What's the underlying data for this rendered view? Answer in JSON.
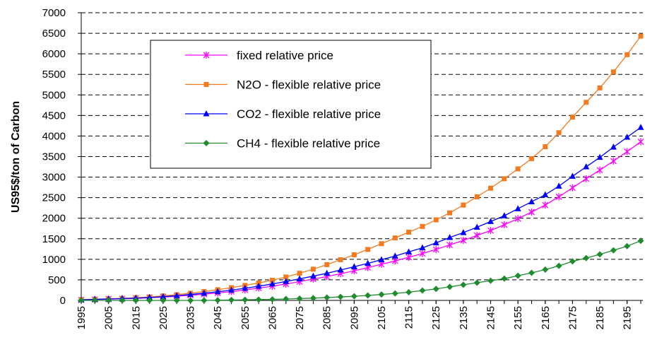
{
  "chart_data": {
    "type": "line",
    "y_label": "US95$/ton of Carbon",
    "x": [
      1995,
      2000,
      2005,
      2010,
      2015,
      2020,
      2025,
      2030,
      2035,
      2040,
      2045,
      2050,
      2055,
      2060,
      2065,
      2070,
      2075,
      2080,
      2085,
      2090,
      2095,
      2100,
      2105,
      2110,
      2115,
      2120,
      2125,
      2130,
      2135,
      2140,
      2145,
      2150,
      2155,
      2160,
      2165,
      2170,
      2175,
      2180,
      2185,
      2190,
      2195,
      2200
    ],
    "xlim": [
      1995,
      2200
    ],
    "xticks": [
      1995,
      2005,
      2015,
      2025,
      2035,
      2045,
      2055,
      2065,
      2075,
      2085,
      2095,
      2105,
      2115,
      2125,
      2135,
      2145,
      2155,
      2165,
      2175,
      2185,
      2195
    ],
    "ylim": [
      0,
      7000
    ],
    "yticks": [
      0,
      500,
      1000,
      1500,
      2000,
      2500,
      3000,
      3500,
      4000,
      4500,
      5000,
      5500,
      6000,
      6500,
      7000
    ],
    "grid": true,
    "legend": "upper-left",
    "series": [
      {
        "name": "fixed relative price",
        "color": "#ff00ff",
        "marker": "asterisk",
        "values": [
          10,
          20,
          30,
          40,
          50,
          65,
          80,
          100,
          125,
          150,
          180,
          215,
          255,
          300,
          345,
          400,
          455,
          520,
          580,
          650,
          720,
          800,
          880,
          960,
          1050,
          1140,
          1240,
          1350,
          1460,
          1580,
          1700,
          1840,
          1990,
          2150,
          2320,
          2520,
          2740,
          2960,
          3170,
          3390,
          3620,
          3860
        ]
      },
      {
        "name": "N2O - flexible relative price",
        "color": "#f47a20",
        "marker": "square",
        "values": [
          20,
          30,
          40,
          50,
          65,
          85,
          110,
          140,
          175,
          215,
          260,
          310,
          365,
          425,
          490,
          570,
          660,
          760,
          870,
          990,
          1110,
          1240,
          1380,
          1520,
          1660,
          1800,
          1960,
          2130,
          2320,
          2520,
          2730,
          2960,
          3200,
          3450,
          3740,
          4080,
          4460,
          4820,
          5170,
          5560,
          5980,
          6430
        ]
      },
      {
        "name": "CO2 - flexible relative price",
        "color": "#0000ff",
        "marker": "triangle",
        "values": [
          15,
          25,
          35,
          45,
          55,
          70,
          90,
          115,
          145,
          175,
          210,
          250,
          295,
          345,
          400,
          460,
          525,
          590,
          660,
          740,
          820,
          900,
          990,
          1080,
          1180,
          1280,
          1400,
          1530,
          1650,
          1780,
          1920,
          2060,
          2230,
          2400,
          2570,
          2780,
          3020,
          3250,
          3480,
          3730,
          3970,
          4210
        ]
      },
      {
        "name": "CH4 - flexible relative price",
        "color": "#1e8c2e",
        "marker": "diamond",
        "values": [
          0,
          0,
          0,
          0,
          0,
          0,
          0,
          0,
          0,
          0,
          5,
          10,
          15,
          20,
          25,
          35,
          45,
          55,
          70,
          85,
          100,
          120,
          145,
          170,
          200,
          240,
          280,
          330,
          380,
          430,
          480,
          530,
          600,
          670,
          750,
          840,
          950,
          1030,
          1120,
          1220,
          1320,
          1450
        ]
      }
    ]
  }
}
